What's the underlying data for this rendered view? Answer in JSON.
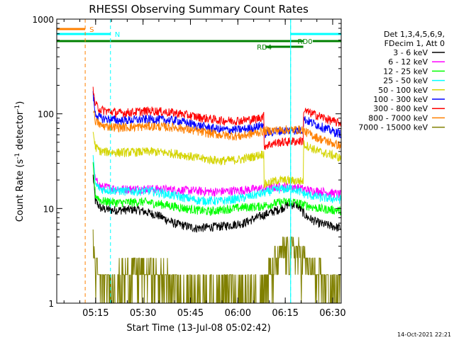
{
  "chart_data": {
    "type": "line",
    "title": "RHESSI Observing Summary Count Rates",
    "xlabel": "Start Time (13-Jul-08 05:02:42)",
    "ylabel_main": "Count Rate (s",
    "ylabel_sup": "-1",
    "ylabel_mid": " detector",
    "ylabel_sup2": "-1",
    "ylabel_end": ")",
    "yscale": "log",
    "ylim": [
      1,
      1000
    ],
    "xlim_minutes": [
      0,
      90
    ],
    "yticks": [
      {
        "value": 1,
        "label": "1"
      },
      {
        "value": 10,
        "label": "10"
      },
      {
        "value": 100,
        "label": "100"
      },
      {
        "value": 1000,
        "label": "1000"
      }
    ],
    "xticks": [
      {
        "minute": 12.3,
        "label": "05:15"
      },
      {
        "minute": 27.3,
        "label": "05:30"
      },
      {
        "minute": 42.3,
        "label": "05:45"
      },
      {
        "minute": 57.3,
        "label": "06:00"
      },
      {
        "minute": 72.3,
        "label": "06:15"
      },
      {
        "minute": 87.3,
        "label": "06:30"
      }
    ],
    "legend_header": [
      "Det 1,3,4,5,6,9,",
      "FDecim 1, Att 0"
    ],
    "series": [
      {
        "name": "3 - 6 keV",
        "color": "#000000",
        "points": [
          [
            11.5,
            22
          ],
          [
            12.2,
            12
          ],
          [
            14,
            10
          ],
          [
            18,
            9.6
          ],
          [
            25,
            9.8
          ],
          [
            32,
            8.5
          ],
          [
            37,
            7
          ],
          [
            44,
            6.2
          ],
          [
            52,
            6.5
          ],
          [
            59,
            7
          ],
          [
            64,
            8.2
          ],
          [
            71,
            10
          ],
          [
            73,
            11
          ],
          [
            76,
            11
          ],
          [
            79,
            8.2
          ],
          [
            83,
            7
          ],
          [
            90,
            6.2
          ]
        ]
      },
      {
        "name": "6 - 12 keV",
        "color": "#ff00ff",
        "points": [
          [
            11.5,
            30
          ],
          [
            12.2,
            20
          ],
          [
            14,
            17
          ],
          [
            20,
            16
          ],
          [
            28,
            16.2
          ],
          [
            34,
            16
          ],
          [
            42,
            15.5
          ],
          [
            50,
            15
          ],
          [
            57,
            15.5
          ],
          [
            62,
            16
          ],
          [
            67,
            16.5
          ],
          [
            71,
            17
          ],
          [
            75,
            17
          ],
          [
            80,
            15.5
          ],
          [
            85,
            15
          ],
          [
            90,
            14
          ]
        ]
      },
      {
        "name": "12 - 25 keV",
        "color": "#00ff00",
        "points": [
          [
            11.5,
            28
          ],
          [
            12.2,
            14
          ],
          [
            14,
            12
          ],
          [
            20,
            11.5
          ],
          [
            27,
            11.8
          ],
          [
            34,
            11
          ],
          [
            41,
            10
          ],
          [
            48,
            9.3
          ],
          [
            53,
            9.8
          ],
          [
            59,
            10.3
          ],
          [
            64,
            10.5
          ],
          [
            70,
            11.5
          ],
          [
            74,
            12
          ],
          [
            78,
            11
          ],
          [
            83,
            10
          ],
          [
            90,
            9.5
          ]
        ]
      },
      {
        "name": "25 - 50 keV",
        "color": "#00ffff",
        "points": [
          [
            11.5,
            35
          ],
          [
            12.2,
            18
          ],
          [
            14,
            16
          ],
          [
            22,
            15.2
          ],
          [
            30,
            15.4
          ],
          [
            38,
            13.5
          ],
          [
            45,
            12.2
          ],
          [
            52,
            12
          ],
          [
            59,
            13
          ],
          [
            64,
            14.2
          ],
          [
            70,
            16
          ],
          [
            75,
            16.2
          ],
          [
            79,
            14
          ],
          [
            84,
            13
          ],
          [
            90,
            12.5
          ]
        ]
      },
      {
        "name": "50 - 100 keV",
        "color": "#d4d400",
        "points": [
          [
            11.5,
            65
          ],
          [
            12.2,
            45
          ],
          [
            14,
            40
          ],
          [
            20,
            39
          ],
          [
            30,
            40
          ],
          [
            38,
            38
          ],
          [
            45,
            34
          ],
          [
            52,
            32
          ],
          [
            58,
            33
          ],
          [
            63,
            36
          ],
          [
            65.5,
            38
          ],
          [
            65.6,
            18
          ],
          [
            70,
            20
          ],
          [
            78,
            19.5
          ],
          [
            78.1,
            48
          ],
          [
            83,
            40
          ],
          [
            88,
            36
          ],
          [
            90,
            34
          ]
        ]
      },
      {
        "name": "100 - 300 keV",
        "color": "#0000ff",
        "points": [
          [
            11.5,
            160
          ],
          [
            12.2,
            100
          ],
          [
            14,
            90
          ],
          [
            20,
            85
          ],
          [
            30,
            88
          ],
          [
            38,
            85
          ],
          [
            45,
            75
          ],
          [
            52,
            68
          ],
          [
            58,
            68
          ],
          [
            63,
            72
          ],
          [
            65.5,
            78
          ],
          [
            65.6,
            62
          ],
          [
            70,
            66
          ],
          [
            78,
            68
          ],
          [
            78.1,
            88
          ],
          [
            83,
            75
          ],
          [
            88,
            64
          ],
          [
            90,
            62
          ]
        ]
      },
      {
        "name": "300 - 800 keV",
        "color": "#ff0000",
        "points": [
          [
            11.5,
            175
          ],
          [
            12.2,
            125
          ],
          [
            14,
            110
          ],
          [
            20,
            102
          ],
          [
            30,
            108
          ],
          [
            38,
            102
          ],
          [
            45,
            92
          ],
          [
            52,
            85
          ],
          [
            58,
            85
          ],
          [
            63,
            88
          ],
          [
            65.5,
            95
          ],
          [
            65.6,
            46
          ],
          [
            70,
            50
          ],
          [
            78,
            52
          ],
          [
            78.1,
            108
          ],
          [
            83,
            95
          ],
          [
            88,
            82
          ],
          [
            90,
            80
          ]
        ]
      },
      {
        "name": "800 - 7000 keV",
        "color": "#ff8000",
        "points": [
          [
            11.5,
            115
          ],
          [
            12.2,
            85
          ],
          [
            14,
            75
          ],
          [
            20,
            72
          ],
          [
            30,
            74
          ],
          [
            38,
            72
          ],
          [
            45,
            65
          ],
          [
            52,
            60
          ],
          [
            58,
            58
          ],
          [
            63,
            63
          ],
          [
            65.5,
            66
          ],
          [
            65.6,
            66
          ],
          [
            72,
            68
          ],
          [
            78,
            68
          ],
          [
            78.1,
            66
          ],
          [
            83,
            55
          ],
          [
            88,
            48
          ],
          [
            90,
            46
          ]
        ]
      },
      {
        "name": "7000 - 15000 keV",
        "color": "#808000",
        "points": [
          [
            11.5,
            4.5
          ],
          [
            12.5,
            2
          ],
          [
            15,
            1.5
          ],
          [
            20,
            1.7
          ],
          [
            25,
            2.3
          ],
          [
            30,
            2
          ],
          [
            35,
            1.7
          ],
          [
            40,
            1.4
          ],
          [
            45,
            1.3
          ],
          [
            50,
            1.3
          ],
          [
            55,
            1.4
          ],
          [
            60,
            1.3
          ],
          [
            65,
            1.5
          ],
          [
            70,
            2.8
          ],
          [
            72,
            3.6
          ],
          [
            75,
            3.6
          ],
          [
            78,
            2.8
          ],
          [
            80,
            2.2
          ],
          [
            84,
            1.8
          ],
          [
            88,
            1.5
          ],
          [
            90,
            1.4
          ]
        ]
      }
    ],
    "verticals": [
      {
        "minute": 9,
        "color": "#ff8000"
      },
      {
        "minute": 17,
        "color": "#00ffff"
      },
      {
        "minute": 74,
        "color": "#00ffff"
      },
      {
        "minute": 90,
        "color": "#00ffff"
      }
    ],
    "flags": [
      {
        "label": "S",
        "color": "#ff8000",
        "row": 0,
        "segments": [
          [
            0,
            9
          ]
        ]
      },
      {
        "label": "N",
        "color": "#00ffff",
        "row": 1,
        "segments": [
          [
            0,
            17
          ],
          [
            74,
            90
          ]
        ]
      },
      {
        "label": "RD0",
        "color": "#008000",
        "row": 2,
        "segments": [
          [
            0,
            78
          ],
          [
            81,
            90
          ]
        ]
      },
      {
        "label": "RD4",
        "color": "#008000",
        "row": 3,
        "segments": [
          [
            66,
            78
          ]
        ]
      }
    ],
    "timestamp": "14-Oct-2021 22:21"
  }
}
